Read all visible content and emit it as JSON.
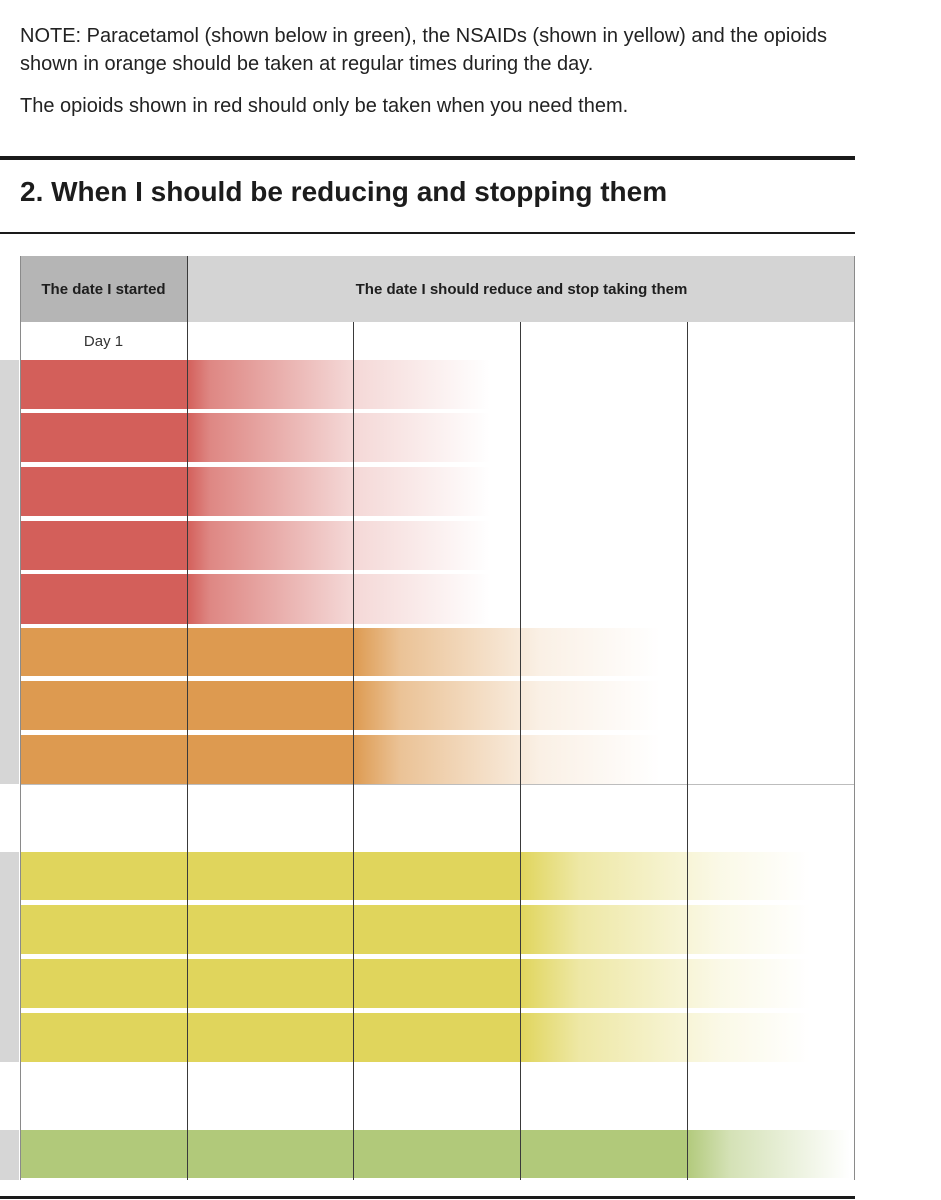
{
  "note": {
    "line1": "NOTE: Paracetamol (shown below in green), the NSAIDs (shown in yellow) and the opioids shown in orange should be taken at regular times during the day.",
    "line2": "The opioids shown in red should only be taken when you need them."
  },
  "section": {
    "title": "2. When I should be reducing and stopping them"
  },
  "table": {
    "header_started": "The date I started",
    "header_reduce": "The date I should reduce and stop taking them",
    "day_label": "Day 1"
  },
  "colors": {
    "red": "#d35f5a",
    "orange": "#dd9a50",
    "yellow": "#e0d55c",
    "green": "#b1c97a",
    "header_dark": "#b5b5b5",
    "header_light": "#d4d4d4"
  }
}
